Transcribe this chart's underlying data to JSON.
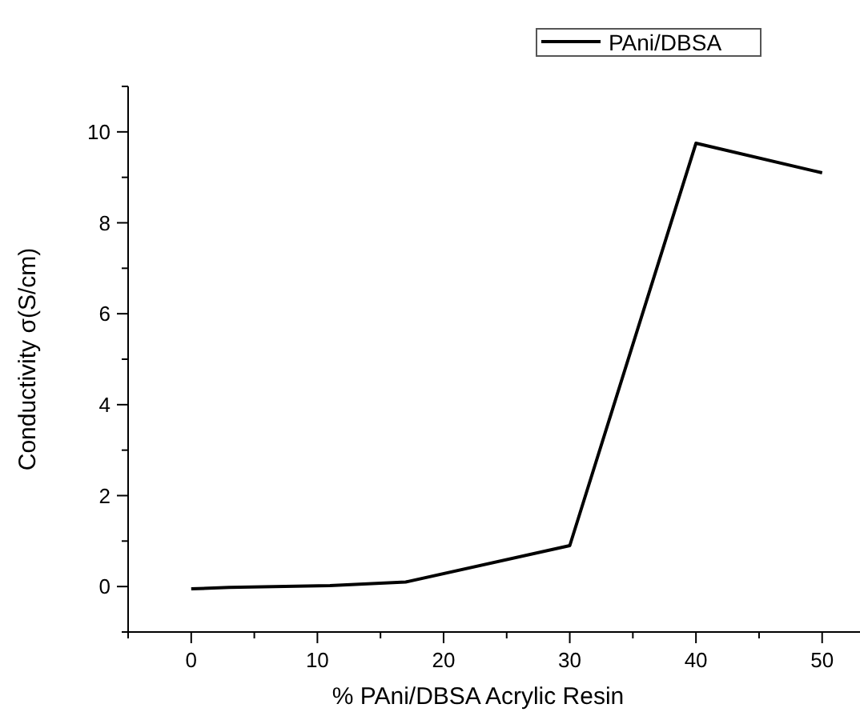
{
  "chart_data": {
    "type": "line",
    "xlabel": "% PAni/DBSA Acrylic Resin",
    "ylabel": "Conductivity σ(S/cm)",
    "x": [
      0,
      3,
      11,
      17,
      30,
      40,
      50
    ],
    "series": [
      {
        "name": "PAni/DBSA",
        "color": "#000000",
        "values": [
          -0.05,
          -0.02,
          0.02,
          0.1,
          0.9,
          9.75,
          9.1
        ]
      }
    ],
    "xlim": [
      -5,
      53
    ],
    "ylim": [
      -1,
      11
    ],
    "xticks": [
      {
        "value": -5,
        "label": null
      },
      0,
      {
        "value": 5,
        "label": null
      },
      10,
      {
        "value": 15,
        "label": null
      },
      20,
      {
        "value": 25,
        "label": null
      },
      30,
      {
        "value": 35,
        "label": null
      },
      40,
      {
        "value": 45,
        "label": null
      },
      50
    ],
    "yticks": [
      {
        "value": -1,
        "label": null
      },
      0,
      {
        "value": 1,
        "label": null
      },
      2,
      {
        "value": 3,
        "label": null
      },
      4,
      {
        "value": 5,
        "label": null
      },
      6,
      {
        "value": 7,
        "label": null
      },
      8,
      {
        "value": 9,
        "label": null
      },
      10,
      {
        "value": 11,
        "label": null
      }
    ],
    "legend": "top right",
    "marker": "none",
    "line_style": "solid",
    "grid": false
  }
}
